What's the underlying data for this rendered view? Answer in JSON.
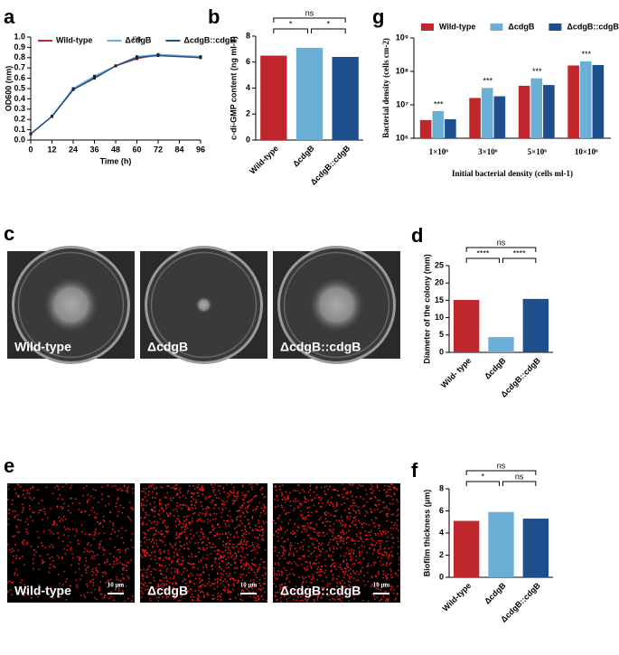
{
  "chart_data": [
    {
      "type": "line",
      "panel": "a",
      "x_label": "Time (h)",
      "y_label": "OD600 (nm)",
      "x": [
        0,
        12,
        24,
        36,
        48,
        60,
        72,
        96
      ],
      "series": [
        {
          "name": "Wild-type",
          "color": "#c0272d",
          "values": [
            0.06,
            0.23,
            0.49,
            0.61,
            0.72,
            0.79,
            0.83,
            0.8
          ]
        },
        {
          "name": "ΔcdgB",
          "color": "#6baed6",
          "values": [
            0.06,
            0.23,
            0.5,
            0.62,
            0.72,
            0.81,
            0.83,
            0.81
          ]
        },
        {
          "name": "ΔcdgB::cdgB",
          "color": "#1f4e8c",
          "values": [
            0.06,
            0.23,
            0.49,
            0.6,
            0.72,
            0.8,
            0.82,
            0.8
          ]
        }
      ],
      "xlim": [
        0,
        96
      ],
      "xticks": [
        0,
        12,
        24,
        36,
        48,
        60,
        72,
        84,
        96
      ],
      "ylim": [
        0,
        1
      ],
      "yticks": [
        {
          "value": 0,
          "label": "0.0"
        },
        0.1,
        0.2,
        0.3,
        0.4,
        0.5,
        0.6,
        0.7,
        0.8,
        0.9,
        {
          "value": 1,
          "label": "1.0"
        }
      ],
      "annotations": [
        "ns"
      ]
    },
    {
      "type": "bar",
      "panel": "b",
      "y_label": "c-di-GMP content (ng ml-1)",
      "categories": [
        "Wild-type",
        "ΔcdgB",
        "ΔcdgB::cdgB"
      ],
      "values": [
        6.5,
        7.1,
        6.4
      ],
      "colors": [
        "#c0272d",
        "#6baed6",
        "#1f4e8c"
      ],
      "ylim": [
        0,
        8
      ],
      "yticks": [
        0,
        2,
        4,
        6,
        8
      ],
      "annotations": [
        "*",
        "*",
        "ns"
      ]
    },
    {
      "type": "bar",
      "panel": "g",
      "x_label": "Initial bacterial density (cells ml-1)",
      "y_label": "Bacterial density (cells cm-2)",
      "log_scale": true,
      "categories": [
        "1×10⁶",
        "3×10⁶",
        "5×10⁶",
        "10×10⁶"
      ],
      "series": [
        {
          "name": "Wild-type",
          "color": "#c0272d",
          "values": [
            3500000,
            16000000,
            37000000,
            150000000
          ]
        },
        {
          "name": "ΔcdgB",
          "color": "#6baed6",
          "values": [
            6500000,
            32000000,
            62000000,
            200000000
          ]
        },
        {
          "name": "ΔcdgB::cdgB",
          "color": "#1f4e8c",
          "values": [
            3700000,
            18000000,
            39000000,
            155000000
          ]
        }
      ],
      "ylim": [
        1000000,
        1000000000
      ],
      "yticks": [
        {
          "value": 1000000,
          "label": "10⁶"
        },
        {
          "value": 10000000,
          "label": "10⁷"
        },
        {
          "value": 100000000,
          "label": "10⁸"
        },
        {
          "value": 1000000000,
          "label": "10⁹"
        }
      ],
      "annotations": [
        "***",
        "***",
        "***",
        "***"
      ]
    },
    {
      "type": "bar",
      "panel": "d",
      "y_label": "Diameter of the colony (mm)",
      "categories": [
        "Wild- type",
        "ΔcdgB",
        "ΔcdgB::cdgB"
      ],
      "values": [
        15.1,
        4.4,
        15.4
      ],
      "colors": [
        "#c0272d",
        "#6baed6",
        "#1f4e8c"
      ],
      "ylim": [
        0,
        25
      ],
      "yticks": [
        0,
        5,
        10,
        15,
        20,
        25
      ],
      "annotations": [
        "****",
        "****",
        "ns"
      ]
    },
    {
      "type": "bar",
      "panel": "f",
      "y_label": "Biofilm thickness (μm)",
      "categories": [
        "Wild-type",
        "ΔcdgB",
        "ΔcdgB::cdgB"
      ],
      "values": [
        5.1,
        5.9,
        5.3
      ],
      "colors": [
        "#c0272d",
        "#6baed6",
        "#1f4e8c"
      ],
      "ylim": [
        0,
        8
      ],
      "yticks": [
        0,
        2,
        4,
        6,
        8
      ],
      "annotations": [
        "*",
        "ns",
        "ns"
      ]
    }
  ],
  "photo_panels": [
    {
      "panel": "c",
      "labels": [
        "Wild-type",
        "ΔcdgB",
        "ΔcdgB::cdgB"
      ]
    },
    {
      "panel": "e",
      "labels": [
        "Wild-type",
        "ΔcdgB",
        "ΔcdgB::cdgB"
      ],
      "scale_bar": "10 μm"
    }
  ]
}
